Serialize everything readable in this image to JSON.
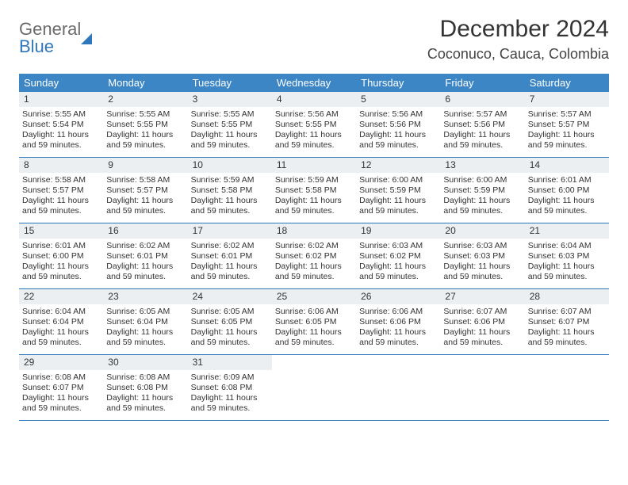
{
  "logo": {
    "general": "General",
    "blue": "Blue"
  },
  "title": "December 2024",
  "location": "Coconuco, Cauca, Colombia",
  "colors": {
    "header_bg": "#3d86c6",
    "header_text": "#ffffff",
    "rule": "#2f77bb",
    "daybar_bg": "#eceff1",
    "body_text": "#333333",
    "logo_gray": "#6b6b6b",
    "logo_blue": "#2f77bb"
  },
  "day_names": [
    "Sunday",
    "Monday",
    "Tuesday",
    "Wednesday",
    "Thursday",
    "Friday",
    "Saturday"
  ],
  "labels": {
    "sunrise_prefix": "Sunrise: ",
    "sunset_prefix": "Sunset: ",
    "daylight_prefix": "Daylight: ",
    "daylight_line1": "11 hours",
    "daylight_line2": "and 59 minutes."
  },
  "weeks": [
    [
      {
        "n": "1",
        "sunrise": "5:55 AM",
        "sunset": "5:54 PM"
      },
      {
        "n": "2",
        "sunrise": "5:55 AM",
        "sunset": "5:55 PM"
      },
      {
        "n": "3",
        "sunrise": "5:55 AM",
        "sunset": "5:55 PM"
      },
      {
        "n": "4",
        "sunrise": "5:56 AM",
        "sunset": "5:55 PM"
      },
      {
        "n": "5",
        "sunrise": "5:56 AM",
        "sunset": "5:56 PM"
      },
      {
        "n": "6",
        "sunrise": "5:57 AM",
        "sunset": "5:56 PM"
      },
      {
        "n": "7",
        "sunrise": "5:57 AM",
        "sunset": "5:57 PM"
      }
    ],
    [
      {
        "n": "8",
        "sunrise": "5:58 AM",
        "sunset": "5:57 PM"
      },
      {
        "n": "9",
        "sunrise": "5:58 AM",
        "sunset": "5:57 PM"
      },
      {
        "n": "10",
        "sunrise": "5:59 AM",
        "sunset": "5:58 PM"
      },
      {
        "n": "11",
        "sunrise": "5:59 AM",
        "sunset": "5:58 PM"
      },
      {
        "n": "12",
        "sunrise": "6:00 AM",
        "sunset": "5:59 PM"
      },
      {
        "n": "13",
        "sunrise": "6:00 AM",
        "sunset": "5:59 PM"
      },
      {
        "n": "14",
        "sunrise": "6:01 AM",
        "sunset": "6:00 PM"
      }
    ],
    [
      {
        "n": "15",
        "sunrise": "6:01 AM",
        "sunset": "6:00 PM"
      },
      {
        "n": "16",
        "sunrise": "6:02 AM",
        "sunset": "6:01 PM"
      },
      {
        "n": "17",
        "sunrise": "6:02 AM",
        "sunset": "6:01 PM"
      },
      {
        "n": "18",
        "sunrise": "6:02 AM",
        "sunset": "6:02 PM"
      },
      {
        "n": "19",
        "sunrise": "6:03 AM",
        "sunset": "6:02 PM"
      },
      {
        "n": "20",
        "sunrise": "6:03 AM",
        "sunset": "6:03 PM"
      },
      {
        "n": "21",
        "sunrise": "6:04 AM",
        "sunset": "6:03 PM"
      }
    ],
    [
      {
        "n": "22",
        "sunrise": "6:04 AM",
        "sunset": "6:04 PM"
      },
      {
        "n": "23",
        "sunrise": "6:05 AM",
        "sunset": "6:04 PM"
      },
      {
        "n": "24",
        "sunrise": "6:05 AM",
        "sunset": "6:05 PM"
      },
      {
        "n": "25",
        "sunrise": "6:06 AM",
        "sunset": "6:05 PM"
      },
      {
        "n": "26",
        "sunrise": "6:06 AM",
        "sunset": "6:06 PM"
      },
      {
        "n": "27",
        "sunrise": "6:07 AM",
        "sunset": "6:06 PM"
      },
      {
        "n": "28",
        "sunrise": "6:07 AM",
        "sunset": "6:07 PM"
      }
    ],
    [
      {
        "n": "29",
        "sunrise": "6:08 AM",
        "sunset": "6:07 PM"
      },
      {
        "n": "30",
        "sunrise": "6:08 AM",
        "sunset": "6:08 PM"
      },
      {
        "n": "31",
        "sunrise": "6:09 AM",
        "sunset": "6:08 PM"
      },
      null,
      null,
      null,
      null
    ]
  ]
}
